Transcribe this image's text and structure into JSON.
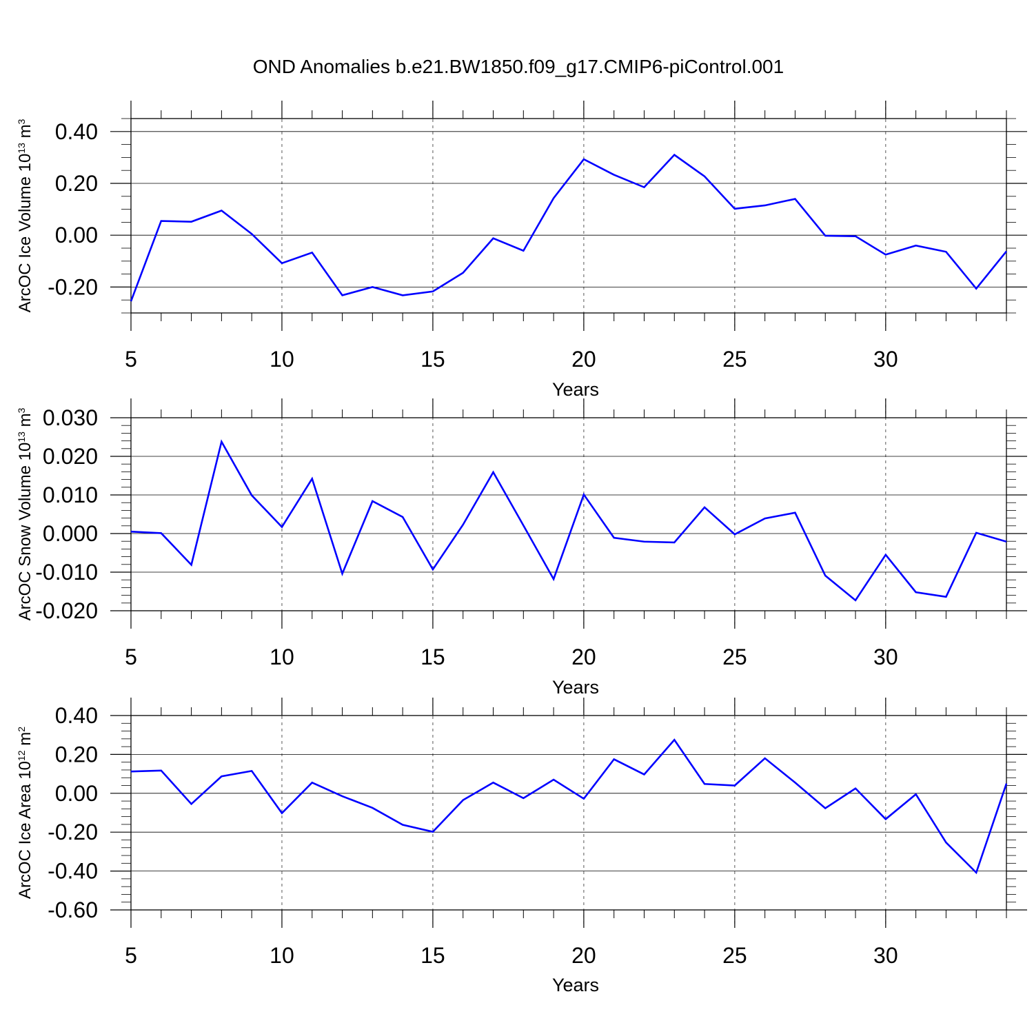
{
  "title": "OND Anomalies b.e21.BW1850.f09_g17.CMIP6-piControl.001",
  "colors": {
    "line": "#0000ff",
    "axis": "#000000",
    "grid": "#555555"
  },
  "chart_data": [
    {
      "type": "line",
      "xlabel": "Years",
      "ylabel": {
        "text": "ArcOC Ice Volume 10",
        "exponent": "13",
        "unit": " m",
        "unit_exponent": "3"
      },
      "xlim": [
        5,
        34
      ],
      "ylim": [
        -0.3,
        0.45
      ],
      "xticks": [
        5,
        10,
        15,
        20,
        25,
        30
      ],
      "yticks": [
        -0.2,
        0.0,
        0.2,
        0.4
      ],
      "ytick_labels": [
        "-0.20",
        "0.00",
        "0.20",
        "0.40"
      ],
      "y_minor_step": 0.05,
      "vgrid": [
        10,
        15,
        20,
        25,
        30
      ],
      "series": [
        {
          "name": "ArcOC Ice Volume",
          "x": [
            5,
            6,
            7,
            8,
            9,
            10,
            11,
            12,
            13,
            14,
            15,
            16,
            17,
            18,
            19,
            20,
            21,
            22,
            23,
            24,
            25,
            26,
            27,
            28,
            29,
            30,
            31,
            32,
            33,
            34
          ],
          "values": [
            -0.255,
            0.055,
            0.052,
            0.095,
            0.005,
            -0.108,
            -0.067,
            -0.232,
            -0.2,
            -0.232,
            -0.217,
            -0.145,
            -0.012,
            -0.06,
            0.143,
            0.293,
            0.233,
            0.185,
            0.31,
            0.227,
            0.102,
            0.115,
            0.14,
            -0.002,
            -0.004,
            -0.075,
            -0.04,
            -0.064,
            -0.206,
            -0.062
          ]
        }
      ]
    },
    {
      "type": "line",
      "xlabel": "Years",
      "ylabel": {
        "text": "ArcOC Snow Volume 10",
        "exponent": "13",
        "unit": " m",
        "unit_exponent": "3"
      },
      "xlim": [
        5,
        34
      ],
      "ylim": [
        -0.02,
        0.03
      ],
      "xticks": [
        5,
        10,
        15,
        20,
        25,
        30
      ],
      "yticks": [
        -0.02,
        -0.01,
        0.0,
        0.01,
        0.02,
        0.03
      ],
      "ytick_labels": [
        "-0.020",
        "-0.010",
        "0.000",
        "0.010",
        "0.020",
        "0.030"
      ],
      "y_minor_step": 0.002,
      "vgrid": [
        10,
        15,
        20,
        25,
        30
      ],
      "series": [
        {
          "name": "ArcOC Snow Volume",
          "x": [
            5,
            6,
            7,
            8,
            9,
            10,
            11,
            12,
            13,
            14,
            15,
            16,
            17,
            18,
            19,
            20,
            21,
            22,
            23,
            24,
            25,
            26,
            27,
            28,
            29,
            30,
            31,
            32,
            33,
            34
          ],
          "values": [
            0.0005,
            0.0001,
            -0.0081,
            0.0238,
            0.0099,
            0.0017,
            0.0142,
            -0.0104,
            0.0084,
            0.0043,
            -0.0093,
            0.0023,
            0.0159,
            0.0021,
            -0.0118,
            0.0101,
            -0.0011,
            -0.0021,
            -0.0023,
            0.0068,
            -0.0002,
            0.0039,
            0.0054,
            -0.0109,
            -0.0173,
            -0.0055,
            -0.0152,
            -0.0164,
            0.0002,
            -0.0021
          ]
        }
      ]
    },
    {
      "type": "line",
      "xlabel": "Years",
      "ylabel": {
        "text": "ArcOC Ice Area 10",
        "exponent": "12",
        "unit": " m",
        "unit_exponent": "2"
      },
      "xlim": [
        5,
        34
      ],
      "ylim": [
        -0.6,
        0.4
      ],
      "xticks": [
        5,
        10,
        15,
        20,
        25,
        30
      ],
      "yticks": [
        -0.6,
        -0.4,
        -0.2,
        0.0,
        0.2,
        0.4
      ],
      "ytick_labels": [
        "-0.60",
        "-0.40",
        "-0.20",
        "0.00",
        "0.20",
        "0.40"
      ],
      "y_minor_step": 0.04,
      "vgrid": [
        10,
        15,
        20,
        25,
        30
      ],
      "series": [
        {
          "name": "ArcOC Ice Area",
          "x": [
            5,
            6,
            7,
            8,
            9,
            10,
            11,
            12,
            13,
            14,
            15,
            16,
            17,
            18,
            19,
            20,
            21,
            22,
            23,
            24,
            25,
            26,
            27,
            28,
            29,
            30,
            31,
            32,
            33,
            34
          ],
          "values": [
            0.112,
            0.117,
            -0.055,
            0.087,
            0.115,
            -0.102,
            0.055,
            -0.015,
            -0.075,
            -0.162,
            -0.198,
            -0.035,
            0.055,
            -0.025,
            0.07,
            -0.028,
            0.175,
            0.097,
            0.275,
            0.048,
            0.04,
            0.18,
            0.055,
            -0.077,
            0.025,
            -0.133,
            -0.005,
            -0.253,
            -0.408,
            0.05
          ]
        }
      ]
    }
  ]
}
